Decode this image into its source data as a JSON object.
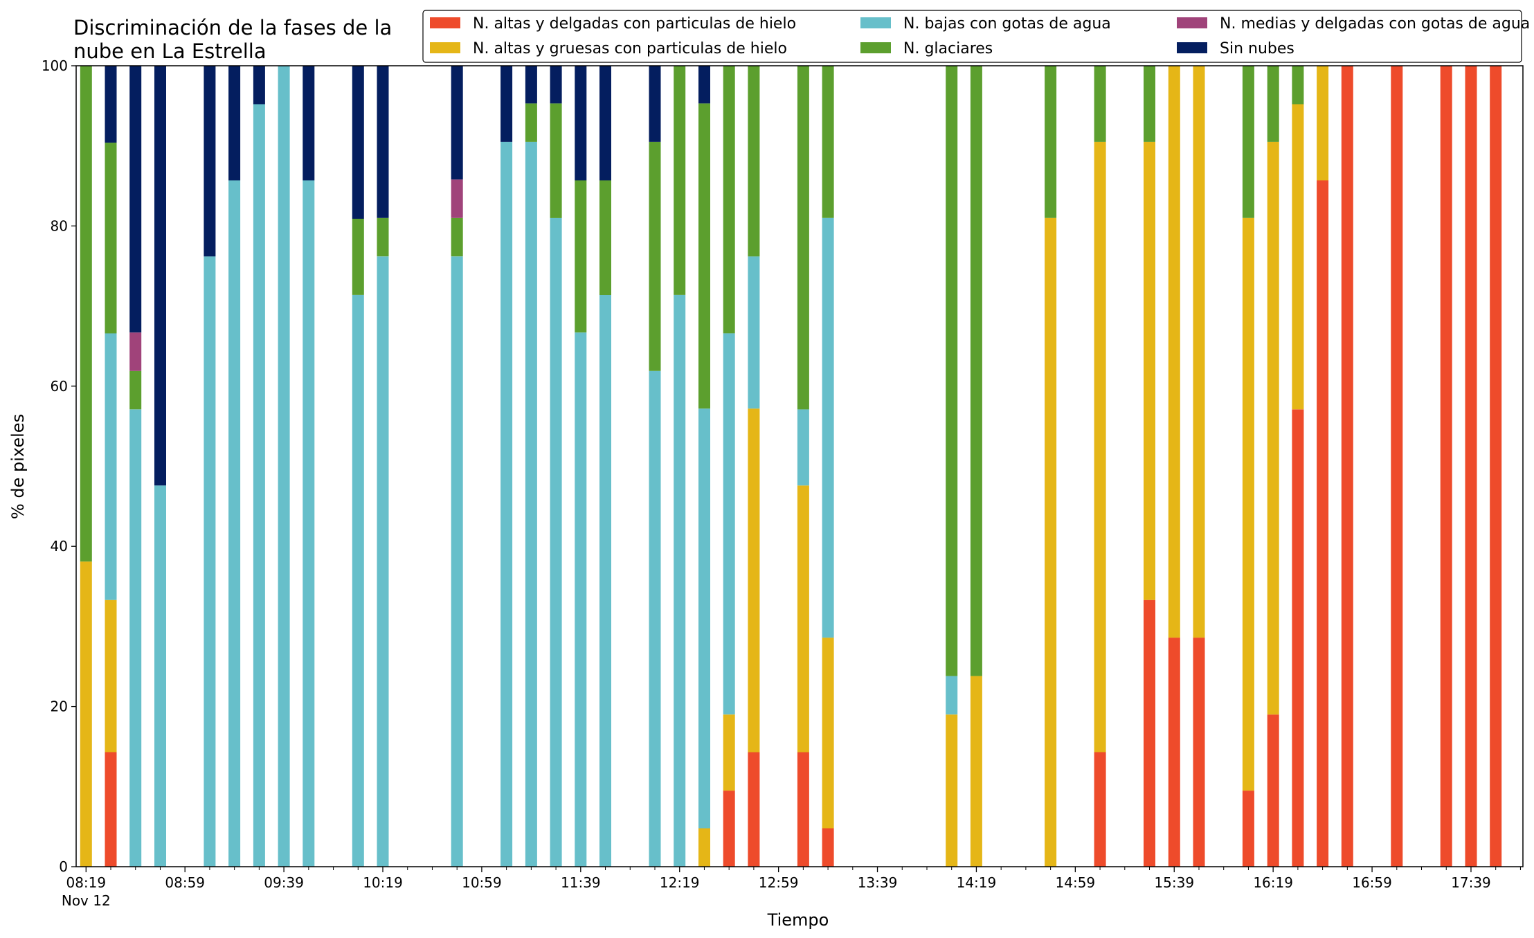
{
  "chart_data": {
    "type": "bar",
    "stacked": true,
    "title_lines": [
      "Discriminación de la fases de la",
      "nube en La Estrella"
    ],
    "xlabel": "Tiempo",
    "ylabel": "% de pixeles",
    "ylim": [
      0,
      100
    ],
    "yticks": [
      0,
      20,
      40,
      60,
      80,
      100
    ],
    "grid": false,
    "legend_position": "top-right",
    "x_time_range": [
      "08:15",
      "18:00"
    ],
    "x_ticks_major": [
      "08:19",
      "08:59",
      "09:39",
      "10:19",
      "10:59",
      "11:39",
      "12:19",
      "12:59",
      "13:39",
      "14:19",
      "14:59",
      "15:39",
      "16:19",
      "16:59",
      "17:39"
    ],
    "x_tick_date": "Nov 12",
    "x_minor_tick_interval_min": 10,
    "series": [
      {
        "key": "thin_ice",
        "name": "N. altas y delgadas con particulas de hielo",
        "color": "#ee4b2b"
      },
      {
        "key": "thick_ice",
        "name": "N. altas y gruesas con particulas de hielo",
        "color": "#e5b617"
      },
      {
        "key": "low_water",
        "name": "N. bajas con gotas de agua",
        "color": "#67bfca"
      },
      {
        "key": "glacier",
        "name": "N. glaciares",
        "color": "#5c9f2e"
      },
      {
        "key": "mid_water",
        "name": "N. medias y delgadas con gotas de agua",
        "color": "#a0437a"
      },
      {
        "key": "clear",
        "name": "Sin nubes",
        "color": "#041e5f"
      }
    ],
    "legend_order": [
      "thin_ice",
      "thick_ice",
      "low_water",
      "glacier",
      "mid_water",
      "clear"
    ],
    "bars": [
      {
        "time": "08:19",
        "values": {
          "thin_ice": 0,
          "thick_ice": 38.1,
          "low_water": 0,
          "glacier": 61.9,
          "mid_water": 0,
          "clear": 0
        }
      },
      {
        "time": "08:29",
        "values": {
          "thin_ice": 14.3,
          "thick_ice": 19.0,
          "low_water": 33.3,
          "glacier": 23.8,
          "mid_water": 0,
          "clear": 9.6
        }
      },
      {
        "time": "08:39",
        "values": {
          "thin_ice": 0,
          "thick_ice": 0,
          "low_water": 57.1,
          "glacier": 4.8,
          "mid_water": 4.8,
          "clear": 33.3
        }
      },
      {
        "time": "08:49",
        "values": {
          "thin_ice": 0,
          "thick_ice": 0,
          "low_water": 47.6,
          "glacier": 0,
          "mid_water": 0,
          "clear": 52.4
        }
      },
      {
        "time": "09:09",
        "values": {
          "thin_ice": 0,
          "thick_ice": 0,
          "low_water": 76.2,
          "glacier": 0,
          "mid_water": 0,
          "clear": 23.8
        }
      },
      {
        "time": "09:19",
        "values": {
          "thin_ice": 0,
          "thick_ice": 0,
          "low_water": 85.7,
          "glacier": 0,
          "mid_water": 0,
          "clear": 14.3
        }
      },
      {
        "time": "09:29",
        "values": {
          "thin_ice": 0,
          "thick_ice": 0,
          "low_water": 95.2,
          "glacier": 0,
          "mid_water": 0,
          "clear": 4.8
        }
      },
      {
        "time": "09:39",
        "values": {
          "thin_ice": 0,
          "thick_ice": 0,
          "low_water": 100,
          "glacier": 0,
          "mid_water": 0,
          "clear": 0
        }
      },
      {
        "time": "09:49",
        "values": {
          "thin_ice": 0,
          "thick_ice": 0,
          "low_water": 85.7,
          "glacier": 0,
          "mid_water": 0,
          "clear": 14.3
        }
      },
      {
        "time": "10:09",
        "values": {
          "thin_ice": 0,
          "thick_ice": 0,
          "low_water": 71.4,
          "glacier": 9.5,
          "mid_water": 0,
          "clear": 19.1
        }
      },
      {
        "time": "10:19",
        "values": {
          "thin_ice": 0,
          "thick_ice": 0,
          "low_water": 76.2,
          "glacier": 4.8,
          "mid_water": 0,
          "clear": 19.0
        }
      },
      {
        "time": "10:49",
        "values": {
          "thin_ice": 0,
          "thick_ice": 0,
          "low_water": 76.2,
          "glacier": 4.8,
          "mid_water": 4.8,
          "clear": 14.2
        }
      },
      {
        "time": "11:09",
        "values": {
          "thin_ice": 0,
          "thick_ice": 0,
          "low_water": 90.5,
          "glacier": 0,
          "mid_water": 0,
          "clear": 9.5
        }
      },
      {
        "time": "11:19",
        "values": {
          "thin_ice": 0,
          "thick_ice": 0,
          "low_water": 90.5,
          "glacier": 4.8,
          "mid_water": 0,
          "clear": 4.7
        }
      },
      {
        "time": "11:29",
        "values": {
          "thin_ice": 0,
          "thick_ice": 0,
          "low_water": 81.0,
          "glacier": 14.3,
          "mid_water": 0,
          "clear": 4.7
        }
      },
      {
        "time": "11:39",
        "values": {
          "thin_ice": 0,
          "thick_ice": 0,
          "low_water": 66.7,
          "glacier": 19.0,
          "mid_water": 0,
          "clear": 14.3
        }
      },
      {
        "time": "11:49",
        "values": {
          "thin_ice": 0,
          "thick_ice": 0,
          "low_water": 71.4,
          "glacier": 14.3,
          "mid_water": 0,
          "clear": 14.3
        }
      },
      {
        "time": "12:09",
        "values": {
          "thin_ice": 0,
          "thick_ice": 0,
          "low_water": 61.9,
          "glacier": 28.6,
          "mid_water": 0,
          "clear": 9.5
        }
      },
      {
        "time": "12:19",
        "values": {
          "thin_ice": 0,
          "thick_ice": 0,
          "low_water": 71.4,
          "glacier": 28.6,
          "mid_water": 0,
          "clear": 0
        }
      },
      {
        "time": "12:29",
        "values": {
          "thin_ice": 0,
          "thick_ice": 4.8,
          "low_water": 52.4,
          "glacier": 38.1,
          "mid_water": 0,
          "clear": 4.7
        }
      },
      {
        "time": "12:39",
        "values": {
          "thin_ice": 9.5,
          "thick_ice": 9.5,
          "low_water": 47.6,
          "glacier": 33.4,
          "mid_water": 0,
          "clear": 0
        }
      },
      {
        "time": "12:49",
        "values": {
          "thin_ice": 14.3,
          "thick_ice": 42.9,
          "low_water": 19.0,
          "glacier": 23.8,
          "mid_water": 0,
          "clear": 0
        }
      },
      {
        "time": "13:09",
        "values": {
          "thin_ice": 14.3,
          "thick_ice": 33.3,
          "low_water": 9.5,
          "glacier": 42.9,
          "mid_water": 0,
          "clear": 0
        }
      },
      {
        "time": "13:19",
        "values": {
          "thin_ice": 4.8,
          "thick_ice": 23.8,
          "low_water": 52.4,
          "glacier": 19.0,
          "mid_water": 0,
          "clear": 0
        }
      },
      {
        "time": "14:09",
        "values": {
          "thin_ice": 0,
          "thick_ice": 19.0,
          "low_water": 4.8,
          "glacier": 76.2,
          "mid_water": 0,
          "clear": 0
        }
      },
      {
        "time": "14:19",
        "values": {
          "thin_ice": 0,
          "thick_ice": 23.8,
          "low_water": 0,
          "glacier": 76.2,
          "mid_water": 0,
          "clear": 0
        }
      },
      {
        "time": "14:49",
        "values": {
          "thin_ice": 0,
          "thick_ice": 81.0,
          "low_water": 0,
          "glacier": 19.0,
          "mid_water": 0,
          "clear": 0
        }
      },
      {
        "time": "15:09",
        "values": {
          "thin_ice": 14.3,
          "thick_ice": 76.2,
          "low_water": 0,
          "glacier": 9.5,
          "mid_water": 0,
          "clear": 0
        }
      },
      {
        "time": "15:29",
        "values": {
          "thin_ice": 33.3,
          "thick_ice": 57.2,
          "low_water": 0,
          "glacier": 9.5,
          "mid_water": 0,
          "clear": 0
        }
      },
      {
        "time": "15:39",
        "values": {
          "thin_ice": 28.6,
          "thick_ice": 71.4,
          "low_water": 0,
          "glacier": 0,
          "mid_water": 0,
          "clear": 0
        }
      },
      {
        "time": "15:49",
        "values": {
          "thin_ice": 28.6,
          "thick_ice": 71.4,
          "low_water": 0,
          "glacier": 0,
          "mid_water": 0,
          "clear": 0
        }
      },
      {
        "time": "16:09",
        "values": {
          "thin_ice": 9.5,
          "thick_ice": 71.5,
          "low_water": 0,
          "glacier": 19.0,
          "mid_water": 0,
          "clear": 0
        }
      },
      {
        "time": "16:19",
        "values": {
          "thin_ice": 19.0,
          "thick_ice": 71.5,
          "low_water": 0,
          "glacier": 9.5,
          "mid_water": 0,
          "clear": 0
        }
      },
      {
        "time": "16:29",
        "values": {
          "thin_ice": 57.1,
          "thick_ice": 38.1,
          "low_water": 0,
          "glacier": 4.8,
          "mid_water": 0,
          "clear": 0
        }
      },
      {
        "time": "16:39",
        "values": {
          "thin_ice": 85.7,
          "thick_ice": 14.3,
          "low_water": 0,
          "glacier": 0,
          "mid_water": 0,
          "clear": 0
        }
      },
      {
        "time": "16:49",
        "values": {
          "thin_ice": 100,
          "thick_ice": 0,
          "low_water": 0,
          "glacier": 0,
          "mid_water": 0,
          "clear": 0
        }
      },
      {
        "time": "17:09",
        "values": {
          "thin_ice": 100,
          "thick_ice": 0,
          "low_water": 0,
          "glacier": 0,
          "mid_water": 0,
          "clear": 0
        }
      },
      {
        "time": "17:29",
        "values": {
          "thin_ice": 100,
          "thick_ice": 0,
          "low_water": 0,
          "glacier": 0,
          "mid_water": 0,
          "clear": 0
        }
      },
      {
        "time": "17:39",
        "values": {
          "thin_ice": 100,
          "thick_ice": 0,
          "low_water": 0,
          "glacier": 0,
          "mid_water": 0,
          "clear": 0
        }
      },
      {
        "time": "17:49",
        "values": {
          "thin_ice": 100,
          "thick_ice": 0,
          "low_water": 0,
          "glacier": 0,
          "mid_water": 0,
          "clear": 0
        }
      }
    ]
  }
}
